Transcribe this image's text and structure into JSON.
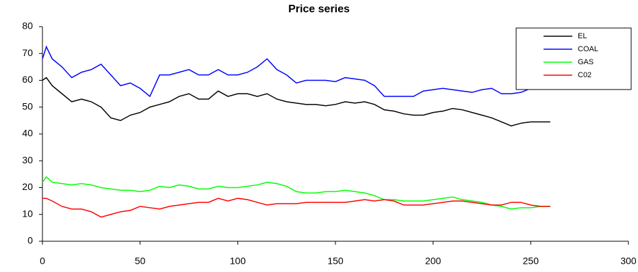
{
  "chart_data": {
    "type": "line",
    "title": "Price series",
    "x": [
      0,
      2,
      5,
      10,
      15,
      20,
      25,
      30,
      35,
      40,
      45,
      50,
      55,
      60,
      65,
      70,
      75,
      80,
      85,
      90,
      95,
      100,
      105,
      110,
      115,
      120,
      125,
      130,
      135,
      140,
      145,
      150,
      155,
      160,
      165,
      170,
      175,
      180,
      185,
      190,
      195,
      200,
      205,
      210,
      215,
      220,
      225,
      230,
      235,
      240,
      245,
      250,
      255,
      260
    ],
    "series": [
      {
        "name": "EL",
        "color": "#000000",
        "values": [
          60,
          61,
          58,
          55,
          52,
          53,
          52,
          50,
          46,
          45,
          47,
          48,
          50,
          51,
          52,
          54,
          55,
          53,
          53,
          56,
          54,
          55,
          55,
          54,
          55,
          53,
          52,
          51.5,
          51,
          51,
          50.5,
          51,
          52,
          51.5,
          52,
          51,
          49,
          48.5,
          47.5,
          47,
          47,
          48,
          48.5,
          49.5,
          49,
          48,
          47,
          46,
          44.5,
          43,
          44,
          44.5,
          44.5,
          44.5
        ]
      },
      {
        "name": "COAL",
        "color": "#0000ff",
        "values": [
          68,
          72.5,
          68,
          65,
          61,
          63,
          64,
          66,
          62,
          58,
          59,
          57,
          54,
          62,
          62,
          63,
          64,
          62,
          62,
          64,
          62,
          62,
          63,
          65,
          68,
          64,
          62,
          59,
          60,
          60,
          60,
          59.5,
          61,
          60.5,
          60,
          58,
          54,
          54,
          54,
          54,
          56,
          56.5,
          57,
          56.5,
          56,
          55.5,
          56.5,
          57,
          55,
          55,
          55.5,
          57,
          60,
          null
        ]
      },
      {
        "name": "GAS",
        "color": "#00ff00",
        "values": [
          22,
          24,
          22,
          21.5,
          21,
          21.5,
          21,
          20,
          19.5,
          19,
          19,
          18.5,
          19,
          20.5,
          20,
          21,
          20.5,
          19.5,
          19.5,
          20.5,
          20,
          20,
          20.5,
          21,
          22,
          21.5,
          20.5,
          18.5,
          18,
          18,
          18.5,
          18.5,
          19,
          18.5,
          18,
          17,
          15.5,
          15.5,
          15,
          15,
          15,
          15.5,
          16,
          16.5,
          15.5,
          15,
          14.5,
          13.5,
          13,
          12,
          12.5,
          12.5,
          13,
          13
        ]
      },
      {
        "name": "C02",
        "color": "#ff0000",
        "values": [
          16,
          16,
          15,
          13,
          12,
          12,
          11,
          9,
          10,
          11,
          11.5,
          13,
          12.5,
          12,
          13,
          13.5,
          14,
          14.5,
          14.5,
          16,
          15,
          16,
          15.5,
          14.5,
          13.5,
          14,
          14,
          14,
          14.5,
          14.5,
          14.5,
          14.5,
          14.5,
          15,
          15.5,
          15,
          15.5,
          15,
          13.5,
          13.5,
          13.5,
          14,
          14.5,
          15,
          15,
          14.5,
          14,
          13.5,
          13.5,
          14.5,
          14.5,
          13.5,
          13,
          13
        ]
      }
    ],
    "xlim": [
      0,
      300
    ],
    "xticks": [
      0,
      50,
      100,
      150,
      200,
      250,
      300
    ],
    "ylim": [
      0,
      80
    ],
    "yticks": [
      0,
      10,
      20,
      30,
      40,
      50,
      60,
      70,
      80
    ],
    "legend": "upper right"
  }
}
